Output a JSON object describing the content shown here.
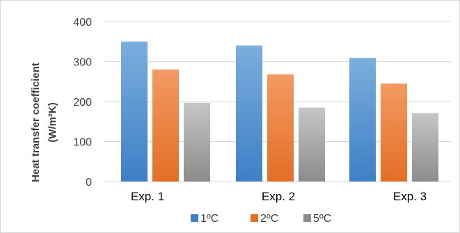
{
  "chart_data": {
    "type": "bar",
    "ylabel_line1": "Heat transfer coefficient",
    "ylabel_line2": "(W/m²K)",
    "categories": [
      "Exp. 1",
      "Exp. 2",
      "Exp. 3"
    ],
    "series": [
      {
        "name": "1ºC",
        "values": [
          350,
          340,
          309
        ],
        "color_light": "#7aaedd",
        "color_dark": "#3e7fc5"
      },
      {
        "name": "2ºC",
        "values": [
          280,
          268,
          245
        ],
        "color_light": "#f29a62",
        "color_dark": "#e46e26"
      },
      {
        "name": "5ºC",
        "values": [
          197,
          185,
          171
        ],
        "color_light": "#c6c6c6",
        "color_dark": "#8c8c8c"
      }
    ],
    "ylim": [
      0,
      400
    ],
    "yticks": [
      0,
      100,
      200,
      300,
      400
    ],
    "grid": true,
    "legend_position": "bottom"
  }
}
